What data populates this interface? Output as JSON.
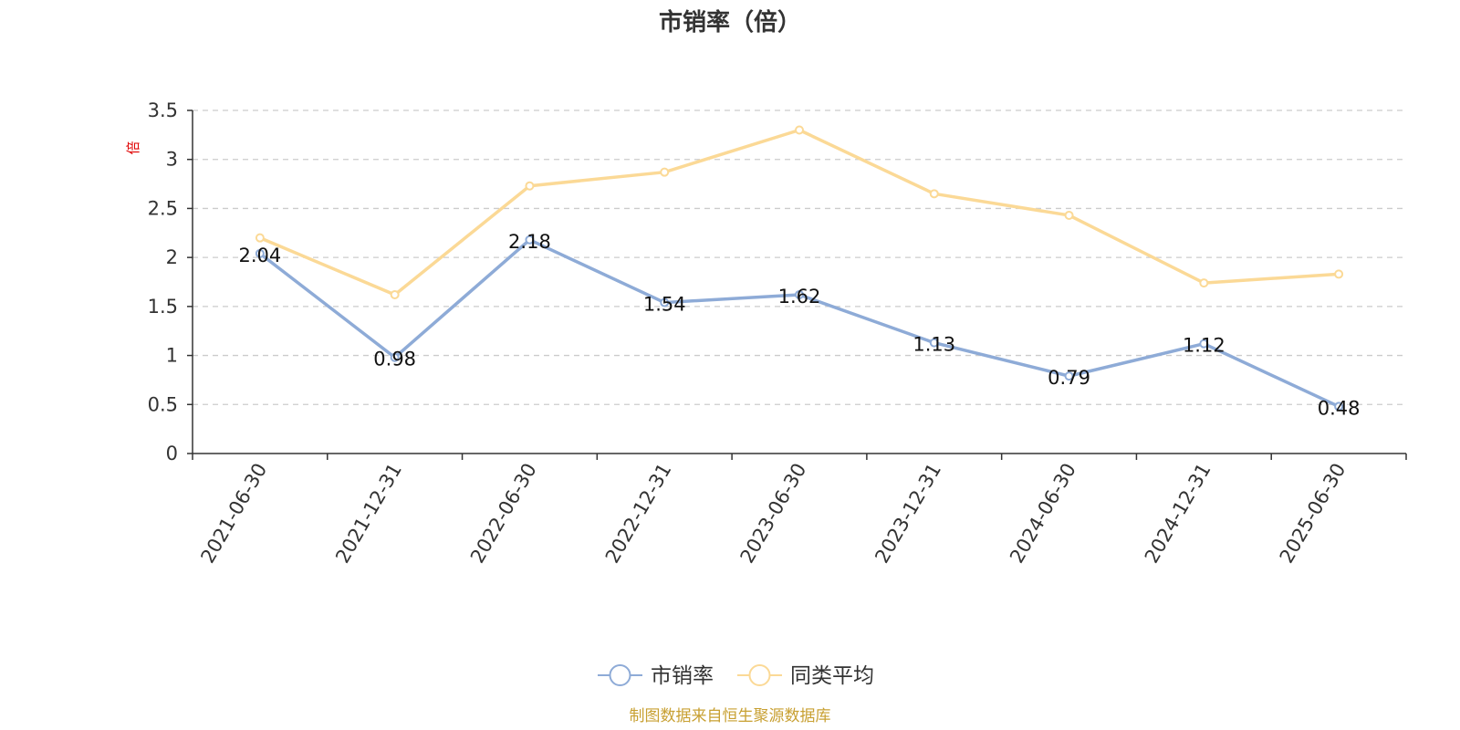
{
  "chart_data": {
    "type": "line",
    "title": "市销率（倍）",
    "ylabel": "倍",
    "categories": [
      "2021-06-30",
      "2021-12-31",
      "2022-06-30",
      "2022-12-31",
      "2023-06-30",
      "2023-12-31",
      "2024-06-30",
      "2024-12-31",
      "2025-06-30"
    ],
    "yticks": [
      "0",
      "0.5",
      "1",
      "1.5",
      "2",
      "2.5",
      "3",
      "3.5"
    ],
    "ylim": [
      0,
      3.5
    ],
    "grid": true,
    "legend_position": "bottom-center",
    "series": [
      {
        "name": "市销率",
        "color": "#8eabd7",
        "values": [
          2.04,
          0.98,
          2.18,
          1.54,
          1.62,
          1.13,
          0.79,
          1.12,
          0.48
        ],
        "labels": [
          "2.04",
          "0.98",
          "2.18",
          "1.54",
          "1.62",
          "1.13",
          "0.79",
          "1.12",
          "0.48"
        ]
      },
      {
        "name": "同类平均",
        "color": "#fbd996",
        "values": [
          2.2,
          1.62,
          2.73,
          2.87,
          3.3,
          2.65,
          2.43,
          1.74,
          1.83
        ]
      }
    ]
  },
  "footer": {
    "source": "制图数据来自恒生聚源数据库"
  }
}
